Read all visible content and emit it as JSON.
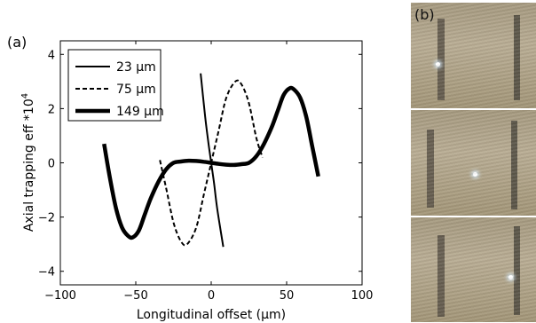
{
  "panel_labels": {
    "a": "(a)",
    "b": "(b)"
  },
  "chart_data": {
    "type": "line",
    "xlabel": "Longitudinal offset (μm)",
    "ylabel": "Axial trapping eff *10^4",
    "xlim": [
      -100,
      100
    ],
    "ylim": [
      -4.5,
      4.5
    ],
    "xticks": [
      -100,
      -50,
      0,
      50,
      100
    ],
    "yticks": [
      -4,
      -2,
      0,
      2,
      4
    ],
    "legend_position": "top-left",
    "series": [
      {
        "name": "23 μm",
        "style": "thin-solid",
        "x": [
          -7,
          -4,
          -2,
          0,
          2,
          4,
          8
        ],
        "y": [
          3.3,
          1.7,
          0.8,
          0.0,
          -0.8,
          -1.7,
          -3.1
        ]
      },
      {
        "name": "75 μm",
        "style": "dashed",
        "x": [
          -34,
          -30,
          -25,
          -20,
          -16,
          -10,
          -5,
          0,
          5,
          10,
          16,
          20,
          25,
          30,
          34
        ],
        "y": [
          0.1,
          -0.9,
          -2.2,
          -2.9,
          -3.0,
          -2.4,
          -1.2,
          0.0,
          1.2,
          2.4,
          3.0,
          2.9,
          2.2,
          0.9,
          0.2
        ]
      },
      {
        "name": "149 μm",
        "style": "thick-solid",
        "x": [
          -71,
          -67,
          -63,
          -59,
          -55,
          -52,
          -48,
          -44,
          -40,
          -35,
          -30,
          -25,
          -20,
          -15,
          -10,
          -5,
          0,
          5,
          10,
          15,
          20,
          25,
          30,
          35,
          40,
          44,
          48,
          52,
          55,
          59,
          63,
          67,
          71
        ],
        "y": [
          0.7,
          -0.6,
          -1.7,
          -2.4,
          -2.7,
          -2.75,
          -2.5,
          -1.9,
          -1.3,
          -0.7,
          -0.25,
          0.0,
          0.05,
          0.08,
          0.07,
          0.04,
          0.0,
          -0.04,
          -0.07,
          -0.08,
          -0.05,
          0.0,
          0.25,
          0.7,
          1.3,
          1.9,
          2.5,
          2.75,
          2.7,
          2.4,
          1.7,
          0.6,
          -0.5
        ]
      }
    ]
  }
}
